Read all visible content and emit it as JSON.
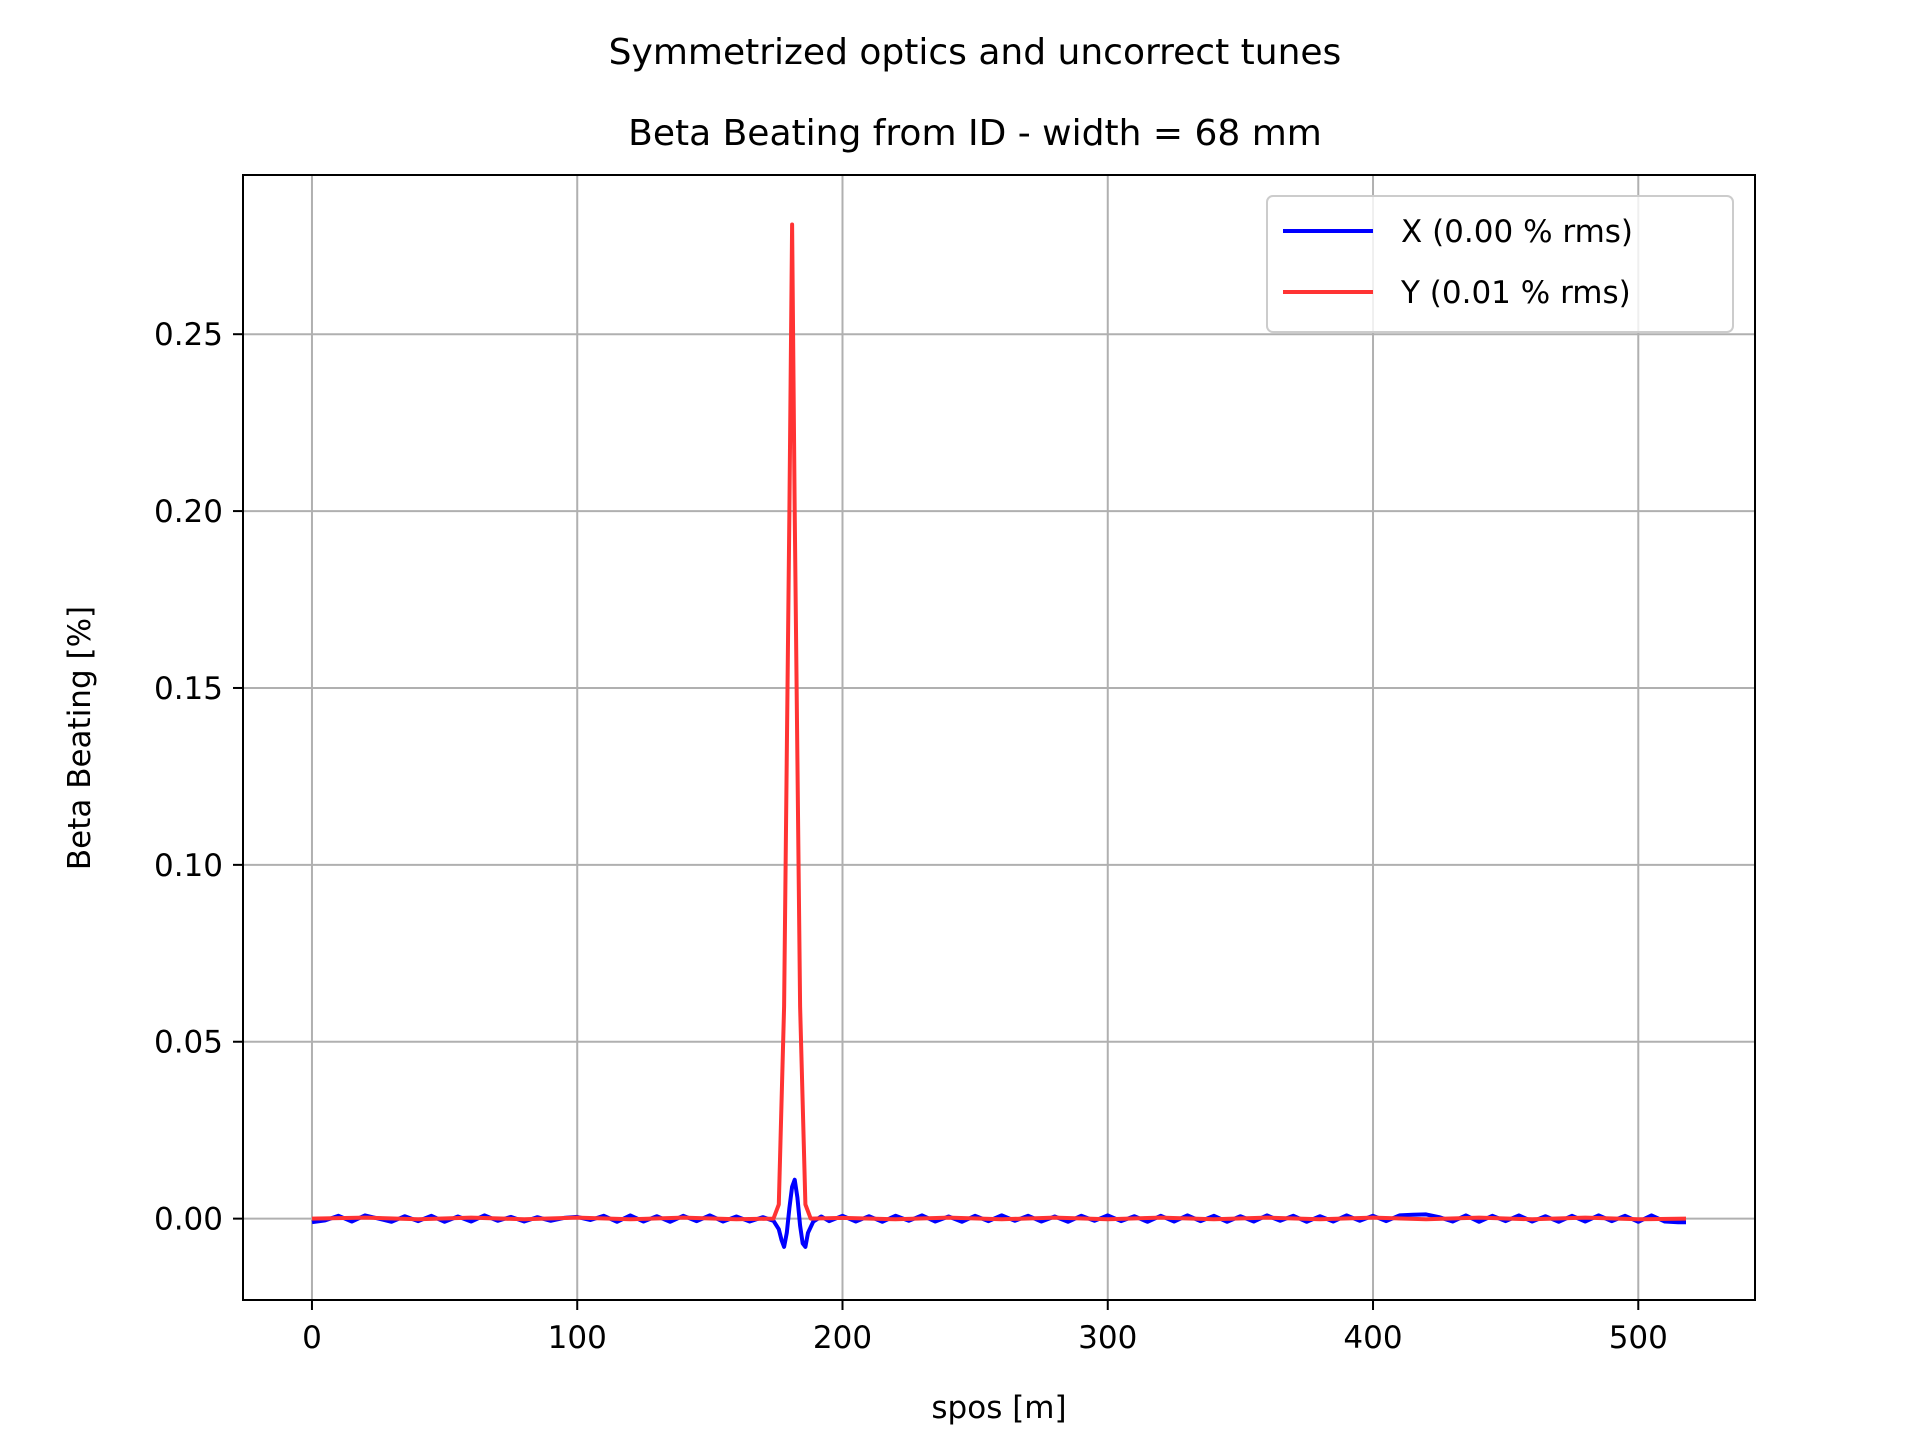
{
  "figure": {
    "suptitle": "Symmetrized optics and uncorrect tunes",
    "title": "Beta Beating from ID - width = 68 mm"
  },
  "chart_data": {
    "type": "line",
    "title": "Beta Beating from ID - width = 68 mm",
    "xlabel": "spos [m]",
    "ylabel": "Beta Beating [%]",
    "xlim": [
      -26,
      544
    ],
    "ylim": [
      -0.023,
      0.295
    ],
    "xticks": [
      0,
      100,
      200,
      300,
      400,
      500
    ],
    "xtick_labels": [
      "0",
      "100",
      "200",
      "300",
      "400",
      "500"
    ],
    "yticks": [
      0.0,
      0.05,
      0.1,
      0.15,
      0.2,
      0.25
    ],
    "ytick_labels": [
      "0.00",
      "0.05",
      "0.10",
      "0.15",
      "0.20",
      "0.25"
    ],
    "grid": true,
    "legend_position": "top-right",
    "series": [
      {
        "name": "X (0.00 % rms)",
        "color": "#0000ff",
        "points": [
          [
            0,
            -0.001
          ],
          [
            5,
            -0.0005
          ],
          [
            10,
            0.0008
          ],
          [
            15,
            -0.0008
          ],
          [
            20,
            0.0009
          ],
          [
            25,
            0.0
          ],
          [
            30,
            -0.0009
          ],
          [
            35,
            0.0007
          ],
          [
            40,
            -0.0007
          ],
          [
            45,
            0.0008
          ],
          [
            50,
            -0.0009
          ],
          [
            55,
            0.0006
          ],
          [
            60,
            -0.0008
          ],
          [
            65,
            0.0009
          ],
          [
            70,
            -0.0006
          ],
          [
            75,
            0.0005
          ],
          [
            80,
            -0.0008
          ],
          [
            85,
            0.0004
          ],
          [
            90,
            -0.0006
          ],
          [
            95,
            0.0002
          ],
          [
            100,
            0.0005
          ],
          [
            105,
            -0.0004
          ],
          [
            110,
            0.0008
          ],
          [
            115,
            -0.0009
          ],
          [
            120,
            0.0009
          ],
          [
            125,
            -0.0008
          ],
          [
            130,
            0.0007
          ],
          [
            135,
            -0.0009
          ],
          [
            140,
            0.0008
          ],
          [
            145,
            -0.0007
          ],
          [
            150,
            0.0009
          ],
          [
            155,
            -0.0008
          ],
          [
            160,
            0.0006
          ],
          [
            165,
            -0.0008
          ],
          [
            170,
            0.0004
          ],
          [
            174,
            -0.0006
          ],
          [
            176,
            -0.003
          ],
          [
            177,
            -0.006
          ],
          [
            178,
            -0.008
          ],
          [
            179,
            -0.004
          ],
          [
            180,
            0.003
          ],
          [
            181,
            0.009
          ],
          [
            182,
            0.011
          ],
          [
            183,
            0.006
          ],
          [
            184,
            -0.002
          ],
          [
            185,
            -0.007
          ],
          [
            186,
            -0.008
          ],
          [
            187,
            -0.004
          ],
          [
            189,
            -0.0008
          ],
          [
            192,
            0.0006
          ],
          [
            195,
            -0.0007
          ],
          [
            200,
            0.0008
          ],
          [
            205,
            -0.0008
          ],
          [
            210,
            0.0007
          ],
          [
            215,
            -0.0009
          ],
          [
            220,
            0.0008
          ],
          [
            225,
            -0.0006
          ],
          [
            230,
            0.0009
          ],
          [
            235,
            -0.0008
          ],
          [
            240,
            0.0006
          ],
          [
            245,
            -0.0009
          ],
          [
            250,
            0.0008
          ],
          [
            255,
            -0.0007
          ],
          [
            260,
            0.0009
          ],
          [
            265,
            -0.0006
          ],
          [
            270,
            0.0008
          ],
          [
            275,
            -0.0008
          ],
          [
            280,
            0.0006
          ],
          [
            285,
            -0.0009
          ],
          [
            290,
            0.0008
          ],
          [
            295,
            -0.0006
          ],
          [
            300,
            0.0009
          ],
          [
            305,
            -0.0007
          ],
          [
            310,
            0.0007
          ],
          [
            315,
            -0.0009
          ],
          [
            320,
            0.0008
          ],
          [
            325,
            -0.0008
          ],
          [
            330,
            0.0009
          ],
          [
            335,
            -0.0007
          ],
          [
            340,
            0.0008
          ],
          [
            345,
            -0.0009
          ],
          [
            350,
            0.0007
          ],
          [
            355,
            -0.0008
          ],
          [
            360,
            0.0009
          ],
          [
            365,
            -0.0006
          ],
          [
            370,
            0.0008
          ],
          [
            375,
            -0.0009
          ],
          [
            380,
            0.0007
          ],
          [
            385,
            -0.0008
          ],
          [
            390,
            0.0009
          ],
          [
            395,
            -0.0006
          ],
          [
            400,
            0.0008
          ],
          [
            405,
            -0.0007
          ],
          [
            410,
            0.0009
          ],
          [
            415,
            0.0011
          ],
          [
            420,
            0.0012
          ],
          [
            425,
            0.0004
          ],
          [
            430,
            -0.0008
          ],
          [
            435,
            0.0009
          ],
          [
            440,
            -0.0009
          ],
          [
            445,
            0.0008
          ],
          [
            450,
            -0.0007
          ],
          [
            455,
            0.0009
          ],
          [
            460,
            -0.0008
          ],
          [
            465,
            0.0007
          ],
          [
            470,
            -0.0009
          ],
          [
            475,
            0.0008
          ],
          [
            480,
            -0.0008
          ],
          [
            485,
            0.0009
          ],
          [
            490,
            -0.0007
          ],
          [
            495,
            0.0008
          ],
          [
            500,
            -0.0009
          ],
          [
            505,
            0.0009
          ],
          [
            510,
            -0.0008
          ],
          [
            515,
            -0.001
          ],
          [
            518,
            -0.001
          ]
        ]
      },
      {
        "name": "Y (0.01 % rms)",
        "color": "#ff3333",
        "points": [
          [
            0,
            0.0
          ],
          [
            20,
            0.0003
          ],
          [
            40,
            -0.0002
          ],
          [
            60,
            0.0003
          ],
          [
            80,
            -0.0002
          ],
          [
            100,
            0.0003
          ],
          [
            120,
            -0.0002
          ],
          [
            140,
            0.0003
          ],
          [
            160,
            -0.0002
          ],
          [
            174,
            0.0
          ],
          [
            176,
            0.004
          ],
          [
            178,
            0.06
          ],
          [
            180,
            0.2
          ],
          [
            181,
            0.281
          ],
          [
            182,
            0.2
          ],
          [
            184,
            0.06
          ],
          [
            186,
            0.004
          ],
          [
            188,
            0.0
          ],
          [
            200,
            0.0002
          ],
          [
            220,
            -0.0002
          ],
          [
            240,
            0.0003
          ],
          [
            260,
            -0.0002
          ],
          [
            280,
            0.0003
          ],
          [
            300,
            -0.0002
          ],
          [
            320,
            0.0003
          ],
          [
            340,
            -0.0002
          ],
          [
            360,
            0.0003
          ],
          [
            380,
            -0.0002
          ],
          [
            400,
            0.0003
          ],
          [
            420,
            -0.0002
          ],
          [
            440,
            0.0003
          ],
          [
            460,
            -0.0002
          ],
          [
            480,
            0.0003
          ],
          [
            500,
            -0.0002
          ],
          [
            518,
            0.0
          ]
        ]
      }
    ]
  }
}
